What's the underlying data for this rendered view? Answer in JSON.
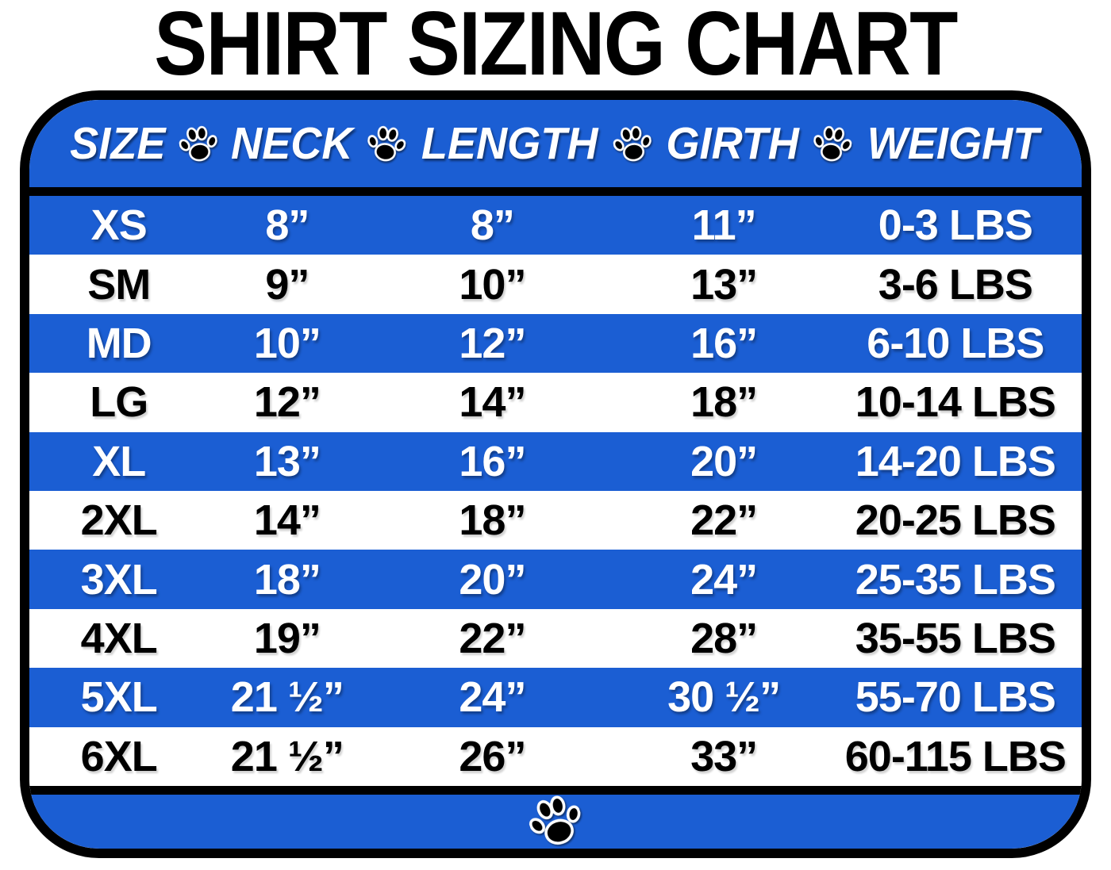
{
  "title": "SHIRT SIZING CHART",
  "colors": {
    "accent_blue": "#1B5ED3",
    "text_on_blue": "#FFFFFF",
    "text_on_white": "#000000",
    "border_black": "#000000"
  },
  "icons": {
    "header_separator": "paw-icon",
    "footer": "paw-icon"
  },
  "chart_data": {
    "type": "table",
    "title": "SHIRT SIZING CHART",
    "columns": [
      "SIZE",
      "NECK",
      "LENGTH",
      "GIRTH",
      "WEIGHT"
    ],
    "rows": [
      [
        "XS",
        "8”",
        "8”",
        "11”",
        "0-3 LBS"
      ],
      [
        "SM",
        "9”",
        "10”",
        "13”",
        "3-6 LBS"
      ],
      [
        "MD",
        "10”",
        "12”",
        "16”",
        "6-10 LBS"
      ],
      [
        "LG",
        "12”",
        "14”",
        "18”",
        "10-14 LBS"
      ],
      [
        "XL",
        "13”",
        "16”",
        "20”",
        "14-20 LBS"
      ],
      [
        "2XL",
        "14”",
        "18”",
        "22”",
        "20-25 LBS"
      ],
      [
        "3XL",
        "18”",
        "20”",
        "24”",
        "25-35 LBS"
      ],
      [
        "4XL",
        "19”",
        "22”",
        "28”",
        "35-55 LBS"
      ],
      [
        "5XL",
        "21 ½”",
        "24”",
        "30 ½”",
        "55-70 LBS"
      ],
      [
        "6XL",
        "21 ½”",
        "26”",
        "33”",
        "60-115 LBS"
      ]
    ],
    "row_highlighted_blue": [
      true,
      false,
      true,
      false,
      true,
      false,
      true,
      false,
      true,
      false
    ],
    "layout": {
      "striping": "alternating blue/white starting blue",
      "header_background": "blue",
      "footer_background": "blue",
      "grid": false,
      "legend": false
    }
  }
}
